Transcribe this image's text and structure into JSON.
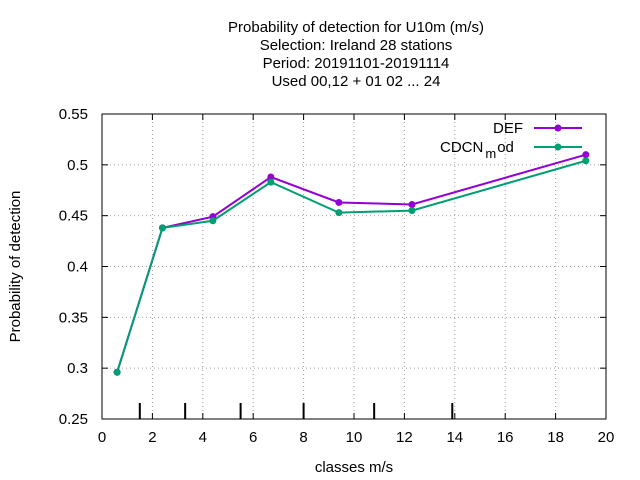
{
  "chart_data": {
    "type": "line",
    "title_lines": [
      "Probability of detection  for U10m (m/s)",
      "Selection: Ireland     28 stations",
      "Period: 20191101-20191114",
      "Used  00,12  + 01 02 ... 24"
    ],
    "xlabel": "classes m/s",
    "ylabel": "Probability of detection",
    "xlim": [
      0,
      20
    ],
    "ylim": [
      0.25,
      0.55
    ],
    "x_ticks": [
      "0",
      "2",
      "4",
      "6",
      "8",
      "10",
      "12",
      "14",
      "16",
      "18",
      "20"
    ],
    "y_ticks": [
      "0.25",
      "0.3",
      "0.35",
      "0.4",
      "0.45",
      "0.5",
      "0.55"
    ],
    "class_boundaries": [
      1.5,
      3.3,
      5.5,
      8.0,
      10.8,
      13.9
    ],
    "grid": true,
    "legend_position": "top-right",
    "legend": {
      "def_label": "DEF",
      "cdcn_main": "CDCN",
      "cdcn_sub": "m",
      "cdcn_rest": "od"
    },
    "series": [
      {
        "name": "DEF",
        "color": "#9400d3",
        "x": [
          0.6,
          2.4,
          4.4,
          6.7,
          9.4,
          12.3,
          19.2
        ],
        "y": [
          0.296,
          0.438,
          0.449,
          0.488,
          0.463,
          0.461,
          0.51
        ]
      },
      {
        "name": "CDCN_mod",
        "color": "#009e73",
        "x": [
          0.6,
          2.4,
          4.4,
          6.7,
          9.4,
          12.3,
          19.2
        ],
        "y": [
          0.296,
          0.438,
          0.445,
          0.483,
          0.453,
          0.455,
          0.504
        ]
      }
    ]
  }
}
